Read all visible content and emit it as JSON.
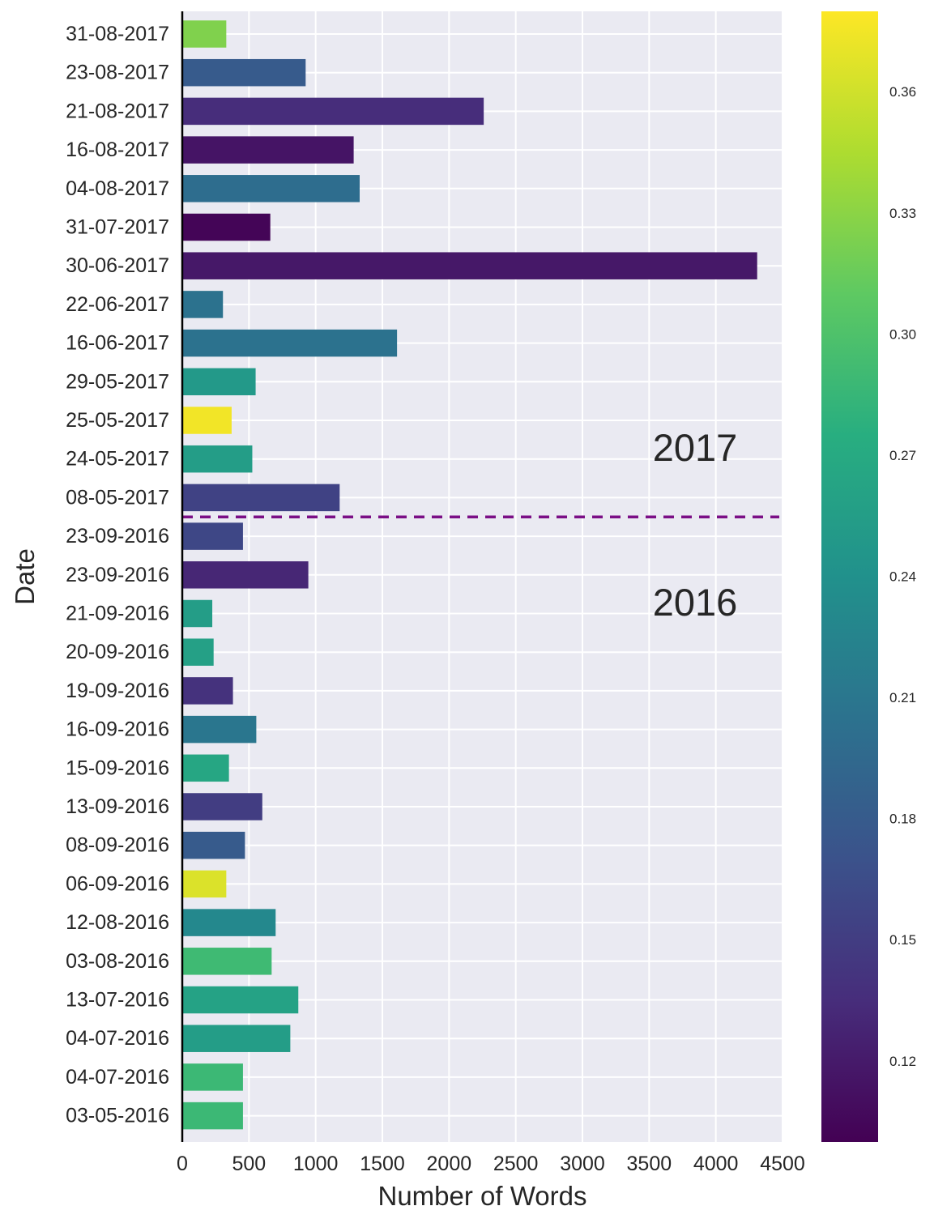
{
  "chart_data": {
    "type": "bar",
    "orientation": "horizontal",
    "xlabel": "Number of Words",
    "ylabel": "Date",
    "xlim": [
      0,
      4500
    ],
    "x_ticks": [
      0,
      500,
      1000,
      1500,
      2000,
      2500,
      3000,
      3500,
      4000,
      4500
    ],
    "grid": true,
    "categories": [
      "31-08-2017",
      "23-08-2017",
      "21-08-2017",
      "16-08-2017",
      "04-08-2017",
      "31-07-2017",
      "30-06-2017",
      "22-06-2017",
      "16-06-2017",
      "29-05-2017",
      "25-05-2017",
      "24-05-2017",
      "08-05-2017",
      "23-09-2016",
      "23-09-2016",
      "21-09-2016",
      "20-09-2016",
      "19-09-2016",
      "16-09-2016",
      "15-09-2016",
      "13-09-2016",
      "08-09-2016",
      "06-09-2016",
      "12-08-2016",
      "03-08-2016",
      "13-07-2016",
      "04-07-2016",
      "04-07-2016",
      "03-05-2016"
    ],
    "values": [
      330,
      925,
      2260,
      1285,
      1330,
      660,
      4310,
      305,
      1610,
      550,
      370,
      525,
      1180,
      455,
      945,
      225,
      235,
      380,
      555,
      350,
      600,
      470,
      330,
      700,
      670,
      870,
      810,
      455,
      455
    ],
    "color_values": [
      0.325,
      0.18,
      0.135,
      0.115,
      0.2,
      0.103,
      0.118,
      0.205,
      0.205,
      0.25,
      0.375,
      0.255,
      0.155,
      0.16,
      0.13,
      0.255,
      0.258,
      0.14,
      0.21,
      0.265,
      0.15,
      0.18,
      0.365,
      0.23,
      0.29,
      0.26,
      0.255,
      0.288,
      0.288
    ],
    "colorbar": {
      "colormap": "viridis",
      "vmin": 0.1,
      "vmax": 0.38,
      "ticks": [
        0.12,
        0.15,
        0.18,
        0.21,
        0.24,
        0.27,
        0.3,
        0.33,
        0.36
      ],
      "tick_labels": [
        "0.12",
        "0.15",
        "0.18",
        "0.21",
        "0.24",
        "0.27",
        "0.30",
        "0.33",
        "0.36"
      ]
    },
    "divider": {
      "between_categories": [
        "08-05-2017",
        "23-09-2016"
      ],
      "style": "dashed",
      "color": "#7b0f86"
    },
    "annotations": [
      {
        "text": "2017"
      },
      {
        "text": "2016"
      }
    ],
    "plot_background": "#eaeaf2"
  }
}
